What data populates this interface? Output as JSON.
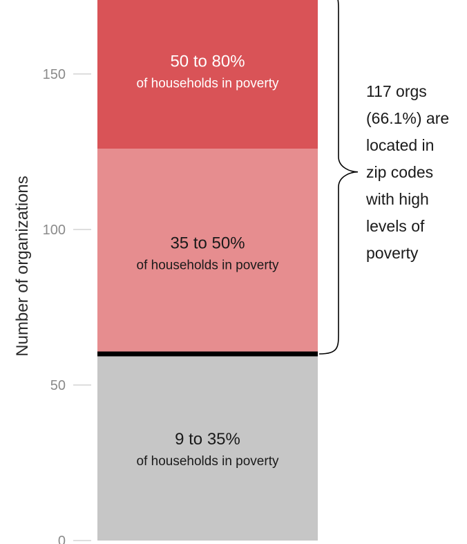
{
  "chart_data": {
    "type": "bar",
    "stacked": true,
    "ylabel": "Number of organizations",
    "ylim": [
      0,
      170
    ],
    "yticks": [
      0,
      50,
      100,
      150
    ],
    "grid": false,
    "segments": [
      {
        "range_label": "9 to 35%",
        "sub_label": "of households in poverty",
        "value": 60,
        "color": "#c6c6c6",
        "text_color": "#1a1a1a"
      },
      {
        "range_label": "35 to 50%",
        "sub_label": "of households in poverty",
        "value": 66,
        "color": "#e68d8f",
        "text_color": "#1a1a1a"
      },
      {
        "range_label": "50 to 80%",
        "sub_label": "of households in poverty",
        "value": 51,
        "color": "#d95357",
        "text_color": "#ffffff"
      }
    ],
    "divider_at": 60,
    "annotation": {
      "lines": [
        "117 orgs",
        "(66.1%) are",
        "located in",
        "zip codes",
        "with high",
        "levels of",
        "poverty"
      ]
    }
  }
}
